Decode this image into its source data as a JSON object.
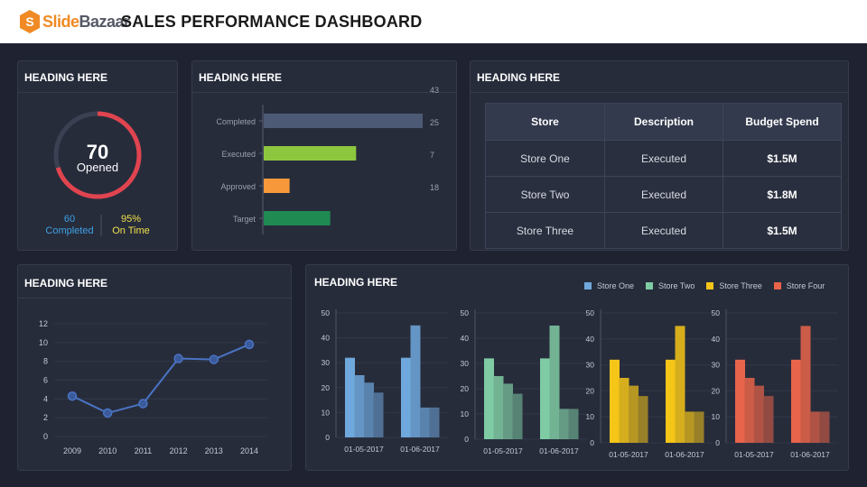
{
  "header": {
    "brand_a": "Slide",
    "brand_b": "Bazaar",
    "title": "SALES PERFORMANCE DASHBOARD"
  },
  "panel1": {
    "heading": "HEADING HERE",
    "ring_value": "70",
    "ring_label": "Opened",
    "ring_progress": 0.7,
    "stat_left_value": "60",
    "stat_left_label": "Completed",
    "stat_right_value": "95%",
    "stat_right_label": "On Time",
    "colors": {
      "ring": "#e0444f",
      "left": "#3ea2e6",
      "right": "#f1e14a"
    }
  },
  "panel2": {
    "heading": "HEADING HERE",
    "chart_data": {
      "type": "bar",
      "categories": [
        "Completed",
        "Executed",
        "Approved",
        "Target"
      ],
      "values": [
        43,
        25,
        7,
        18
      ],
      "colors": [
        "#4c5a76",
        "#8dc63f",
        "#f7993a",
        "#1f8a52"
      ]
    }
  },
  "panel3": {
    "heading": "HEADING HERE",
    "columns": [
      "Store",
      "Description",
      "Budget Spend"
    ],
    "rows": [
      [
        "Store One",
        "Executed",
        "$1.5M"
      ],
      [
        "Store Two",
        "Executed",
        "$1.8M"
      ],
      [
        "Store Three",
        "Executed",
        "$1.5M"
      ]
    ]
  },
  "panel4": {
    "heading": "HEADING HERE",
    "chart_data": {
      "type": "line",
      "x": [
        "2009",
        "2010",
        "2011",
        "2012",
        "2013",
        "2014"
      ],
      "values": [
        4.3,
        2.5,
        3.5,
        8.3,
        8.2,
        9.8
      ],
      "yticks": [
        "0",
        "2",
        "4",
        "6",
        "8",
        "10",
        "12"
      ],
      "ylim": [
        0,
        12
      ],
      "color": "#4a74c4"
    }
  },
  "panel5": {
    "heading": "HEADING HERE",
    "legend": [
      {
        "name": "Store One",
        "color": "#6fa8dc"
      },
      {
        "name": "Store Two",
        "color": "#7fcba4"
      },
      {
        "name": "Store Three",
        "color": "#f5c518"
      },
      {
        "name": "Store Four",
        "color": "#e8644a"
      }
    ],
    "chart_data": [
      {
        "type": "bar",
        "name": "Store One",
        "categories": [
          "01-05-2017",
          "01-06-2017"
        ],
        "series": [
          {
            "values": [
              32,
              32
            ]
          },
          {
            "values": [
              25,
              45
            ]
          },
          {
            "values": [
              22,
              12
            ]
          },
          {
            "values": [
              18,
              12
            ]
          }
        ],
        "yticks": [
          "0",
          "10",
          "20",
          "30",
          "40",
          "50"
        ],
        "ylim": [
          0,
          50
        ]
      },
      {
        "type": "bar",
        "name": "Store Two",
        "categories": [
          "01-05-2017",
          "01-06-2017"
        ],
        "series": [
          {
            "values": [
              32,
              32
            ]
          },
          {
            "values": [
              25,
              45
            ]
          },
          {
            "values": [
              22,
              12
            ]
          },
          {
            "values": [
              18,
              12
            ]
          }
        ],
        "yticks": [
          "0",
          "10",
          "20",
          "30",
          "40",
          "50"
        ],
        "ylim": [
          0,
          50
        ]
      },
      {
        "type": "bar",
        "name": "Store Three",
        "categories": [
          "01-05-2017",
          "01-06-2017"
        ],
        "series": [
          {
            "values": [
              32,
              32
            ]
          },
          {
            "values": [
              25,
              45
            ]
          },
          {
            "values": [
              22,
              12
            ]
          },
          {
            "values": [
              18,
              12
            ]
          }
        ],
        "yticks": [
          "0",
          "10",
          "20",
          "30",
          "40",
          "50"
        ],
        "ylim": [
          0,
          50
        ]
      },
      {
        "type": "bar",
        "name": "Store Four",
        "categories": [
          "01-05-2017",
          "01-06-2017"
        ],
        "series": [
          {
            "values": [
              32,
              32
            ]
          },
          {
            "values": [
              25,
              45
            ]
          },
          {
            "values": [
              22,
              12
            ]
          },
          {
            "values": [
              18,
              12
            ]
          }
        ],
        "yticks": [
          "0",
          "10",
          "20",
          "30",
          "40",
          "50"
        ],
        "ylim": [
          0,
          50
        ]
      }
    ]
  }
}
